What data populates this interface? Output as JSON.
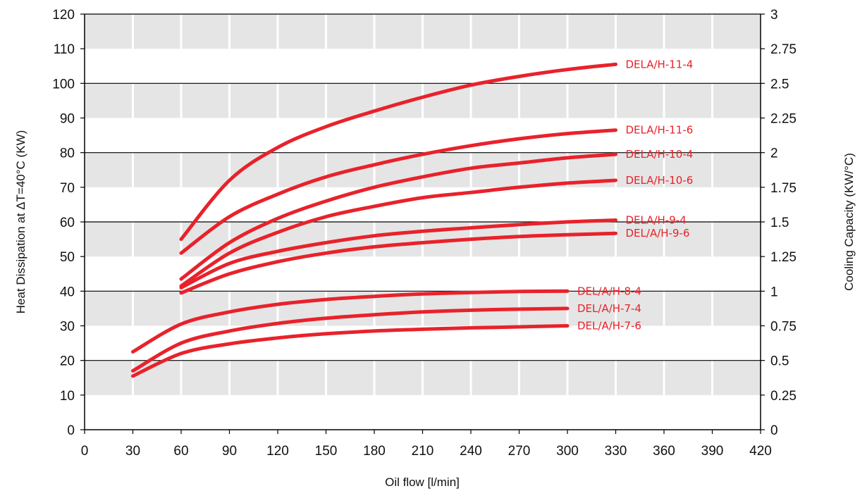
{
  "chart_data": {
    "type": "line",
    "xlabel": "Oil flow [l/min]",
    "ylabel": "Heat Dissipation at  ΔT=40°C (KW)",
    "y2label": "Cooling Capacity (KW/°C)",
    "xlim": [
      0,
      420
    ],
    "ylim": [
      0,
      120
    ],
    "y2lim": [
      0,
      3
    ],
    "x_ticks": [
      "0",
      "30",
      "60",
      "90",
      "120",
      "150",
      "180",
      "210",
      "240",
      "270",
      "300",
      "330",
      "360",
      "390",
      "420"
    ],
    "y_ticks": [
      "0",
      "10",
      "20",
      "30",
      "40",
      "50",
      "60",
      "70",
      "80",
      "90",
      "100",
      "110",
      "120"
    ],
    "y2_ticks": [
      "0",
      "0.25",
      "0.5",
      "0.75",
      "1",
      "1.25",
      "1.5",
      "1.75",
      "2",
      "2.25",
      "2.5",
      "2.75",
      "3"
    ],
    "grid": "shaded horizontal bands with major lines every 20 KW",
    "colors": {
      "series": "#e8222b",
      "band": "#e5e5e5",
      "axis": "#000000"
    },
    "series": [
      {
        "name": "DELA/H-11-4",
        "x": [
          60,
          90,
          120,
          150,
          180,
          210,
          240,
          270,
          300,
          330
        ],
        "y": [
          55,
          72,
          81.5,
          87.5,
          92,
          96,
          99.5,
          102,
          104,
          105.5
        ]
      },
      {
        "name": "DELA/H-11-6",
        "x": [
          60,
          90,
          120,
          150,
          180,
          210,
          240,
          270,
          300,
          330
        ],
        "y": [
          51,
          61.5,
          68,
          73,
          76.5,
          79.5,
          82,
          84,
          85.5,
          86.5
        ]
      },
      {
        "name": "DELA/H-10-4",
        "x": [
          60,
          90,
          120,
          150,
          180,
          210,
          240,
          270,
          300,
          330
        ],
        "y": [
          43.5,
          54,
          61,
          66,
          70,
          73,
          75.5,
          77,
          78.5,
          79.5
        ]
      },
      {
        "name": "DELA/H-10-6",
        "x": [
          60,
          90,
          120,
          150,
          180,
          210,
          240,
          270,
          300,
          330
        ],
        "y": [
          41.5,
          51,
          57,
          61.5,
          64.5,
          67,
          68.5,
          70,
          71.2,
          72
        ]
      },
      {
        "name": "DELA/H-9-4",
        "x": [
          60,
          90,
          120,
          150,
          180,
          210,
          240,
          270,
          300,
          330
        ],
        "y": [
          41,
          48,
          51.5,
          54,
          56,
          57.3,
          58.3,
          59.2,
          60,
          60.5
        ]
      },
      {
        "name": "DEL/A/H-9-6",
        "x": [
          60,
          90,
          120,
          150,
          180,
          210,
          240,
          270,
          300,
          330
        ],
        "y": [
          39.5,
          45,
          48.5,
          51,
          52.8,
          54,
          55,
          55.8,
          56.3,
          56.7
        ]
      },
      {
        "name": "DEL/A/H-8-4",
        "x": [
          30,
          60,
          90,
          120,
          150,
          180,
          210,
          240,
          270,
          300
        ],
        "y": [
          22.5,
          30.5,
          34,
          36.2,
          37.6,
          38.5,
          39.2,
          39.6,
          39.9,
          40
        ]
      },
      {
        "name": "DEL/A/H-7-4",
        "x": [
          30,
          60,
          90,
          120,
          150,
          180,
          210,
          240,
          270,
          300
        ],
        "y": [
          17,
          25,
          28.5,
          30.7,
          32.2,
          33.2,
          34,
          34.5,
          34.8,
          35
        ]
      },
      {
        "name": "DEL/A/H-7-6",
        "x": [
          30,
          60,
          90,
          120,
          150,
          180,
          210,
          240,
          270,
          300
        ],
        "y": [
          15.5,
          22,
          24.8,
          26.5,
          27.7,
          28.5,
          29,
          29.4,
          29.7,
          30
        ]
      }
    ]
  }
}
